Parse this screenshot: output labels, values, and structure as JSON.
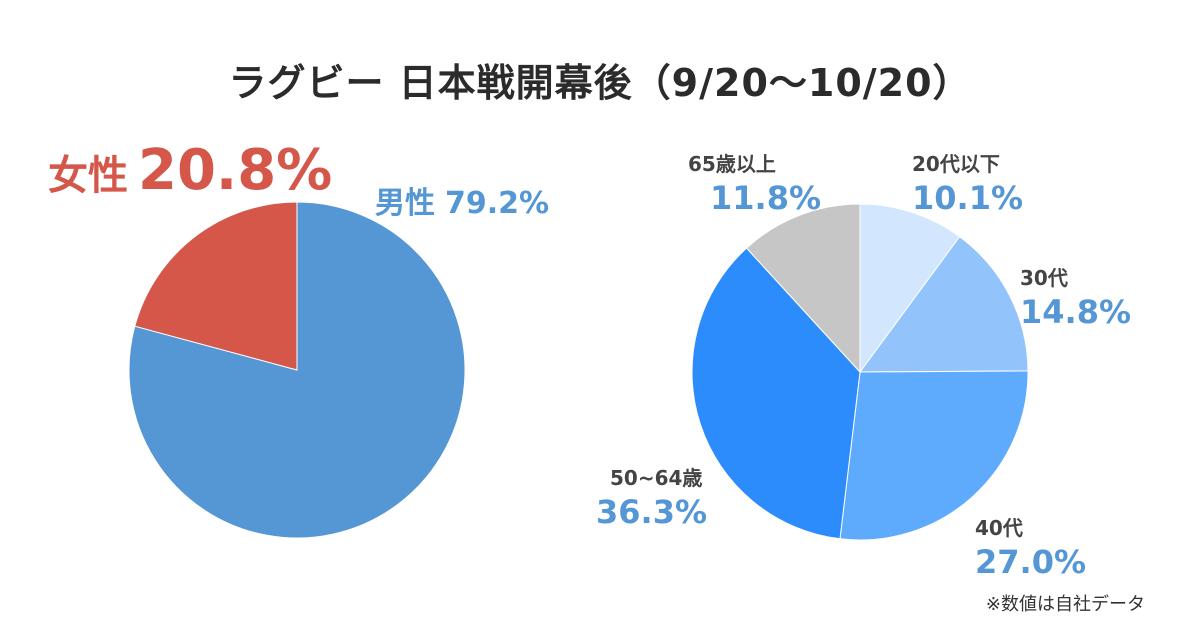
{
  "title": "ラグビー 日本戦開幕後（9/20〜10/20）",
  "note": "※数値は自社データ",
  "chart_data": [
    {
      "type": "pie",
      "title": "",
      "categories": [
        "男性",
        "女性"
      ],
      "values": [
        79.2,
        20.8
      ],
      "value_labels": [
        "79.2%",
        "20.8%"
      ],
      "colors": [
        "#5596d4",
        "#d4574a"
      ]
    },
    {
      "type": "pie",
      "title": "",
      "categories": [
        "20代以下",
        "30代",
        "40代",
        "50~64歳",
        "65歳以上"
      ],
      "values": [
        10.1,
        14.8,
        27.0,
        36.3,
        11.8
      ],
      "value_labels": [
        "10.1%",
        "14.8%",
        "27.0%",
        "36.3%",
        "11.8%"
      ],
      "colors": [
        "#d2e6fd",
        "#92c4fb",
        "#5eaafc",
        "#2c8cfb",
        "#c6c6c6"
      ]
    }
  ]
}
